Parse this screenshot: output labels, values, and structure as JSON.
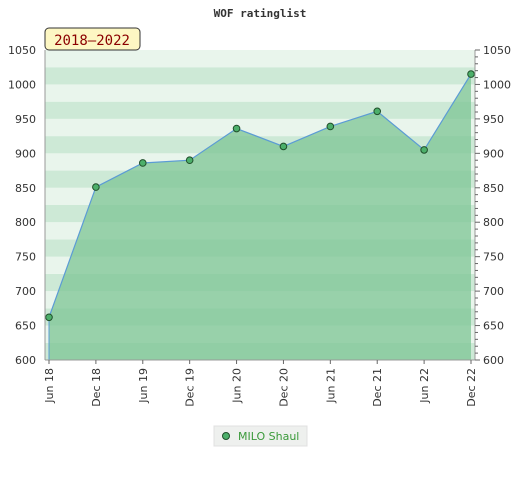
{
  "chart_data": {
    "type": "area",
    "title": "WOF ratinglist",
    "period_badge": "2018–2022",
    "categories": [
      "Jun 18",
      "Dec 18",
      "Jun 19",
      "Dec 19",
      "Jun 20",
      "Dec 20",
      "Jun 21",
      "Dec 21",
      "Jun 22",
      "Dec 22"
    ],
    "series": [
      {
        "name": "MILO Shaul",
        "values": [
          662,
          851,
          886,
          890,
          936,
          910,
          939,
          961,
          905,
          1015
        ]
      }
    ],
    "ylim": [
      600,
      1050
    ],
    "yticks": [
      600,
      650,
      700,
      750,
      800,
      850,
      900,
      950,
      1000,
      1050
    ],
    "grid": true,
    "legend_position": "bottom-center",
    "colors": {
      "line": "#5b9bd5",
      "area": "#7cc494",
      "marker": "#4caf6a",
      "band_light": "#e9f5ec",
      "band_mid": "#cde9d6",
      "badge_bg": "#fdf7c3",
      "badge_text": "#8b0000",
      "legend_text": "#3a9a3a"
    }
  }
}
